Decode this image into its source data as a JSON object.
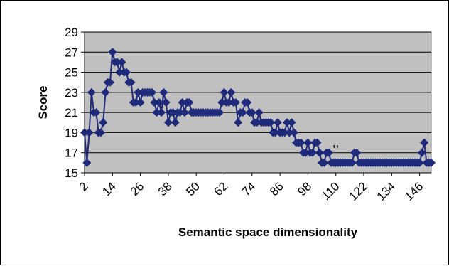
{
  "chart_data": {
    "type": "line",
    "title": "",
    "xlabel": "Semantic space dimensionality",
    "ylabel": "Score",
    "xlim": [
      2,
      151
    ],
    "ylim": [
      15,
      29
    ],
    "yticks": [
      15,
      17,
      19,
      21,
      23,
      25,
      27,
      29
    ],
    "xticks": [
      2,
      14,
      26,
      38,
      50,
      62,
      74,
      86,
      98,
      110,
      122,
      134,
      146
    ],
    "grid": "horizontal",
    "legend": "none",
    "marker": "diamond",
    "colors": {
      "series": "#1F2A7A",
      "plot_bg": "#C0C0C0"
    },
    "annotations": [
      ",,"
    ],
    "series": [
      {
        "name": "",
        "x": [
          2,
          3,
          4,
          5,
          6,
          7,
          8,
          9,
          10,
          11,
          12,
          13,
          14,
          15,
          16,
          17,
          18,
          19,
          20,
          21,
          22,
          23,
          24,
          25,
          26,
          27,
          28,
          29,
          30,
          31,
          32,
          33,
          34,
          35,
          36,
          37,
          38,
          39,
          40,
          41,
          42,
          43,
          44,
          45,
          46,
          47,
          48,
          49,
          50,
          51,
          52,
          53,
          54,
          55,
          56,
          57,
          58,
          59,
          60,
          61,
          62,
          63,
          64,
          65,
          66,
          67,
          68,
          69,
          70,
          71,
          72,
          73,
          74,
          75,
          76,
          77,
          78,
          79,
          80,
          81,
          82,
          83,
          84,
          85,
          86,
          87,
          88,
          89,
          90,
          91,
          92,
          93,
          94,
          95,
          96,
          97,
          98,
          99,
          100,
          101,
          102,
          103,
          104,
          105,
          106,
          107,
          108,
          109,
          110,
          111,
          112,
          113,
          114,
          115,
          116,
          117,
          118,
          119,
          120,
          121,
          122,
          123,
          124,
          125,
          126,
          127,
          128,
          129,
          130,
          131,
          132,
          133,
          134,
          135,
          136,
          137,
          138,
          139,
          140,
          141,
          142,
          143,
          144,
          145,
          146,
          147,
          148,
          149,
          150,
          151
        ],
        "values": [
          19,
          16,
          19,
          23,
          21,
          21,
          19,
          19,
          20,
          23,
          24,
          24,
          27,
          26,
          26,
          25,
          26,
          25,
          25,
          24,
          24,
          22,
          22,
          23,
          22,
          23,
          23,
          23,
          23,
          23,
          22,
          21,
          22,
          21,
          23,
          22,
          20,
          21,
          21,
          20,
          21,
          21,
          22,
          21,
          22,
          22,
          21,
          21,
          21,
          21,
          21,
          21,
          21,
          21,
          21,
          21,
          21,
          21,
          21,
          22,
          23,
          22,
          22,
          23,
          22,
          22,
          20,
          21,
          21,
          22,
          22,
          21,
          21,
          20,
          20,
          21,
          20,
          20,
          20,
          20,
          20,
          19,
          19,
          20,
          19,
          19,
          19,
          20,
          19,
          20,
          19,
          18,
          18,
          18,
          17,
          17,
          18,
          17,
          17,
          18,
          18,
          17,
          16,
          16,
          17,
          17,
          16,
          16,
          16,
          16,
          16,
          16,
          16,
          16,
          16,
          16,
          17,
          17,
          16,
          16,
          16,
          16,
          16,
          16,
          16,
          16,
          16,
          16,
          16,
          16,
          16,
          16,
          16,
          16,
          16,
          16,
          16,
          16,
          16,
          16,
          16,
          16,
          16,
          16,
          16,
          17,
          18,
          16,
          16,
          16
        ]
      }
    ]
  }
}
